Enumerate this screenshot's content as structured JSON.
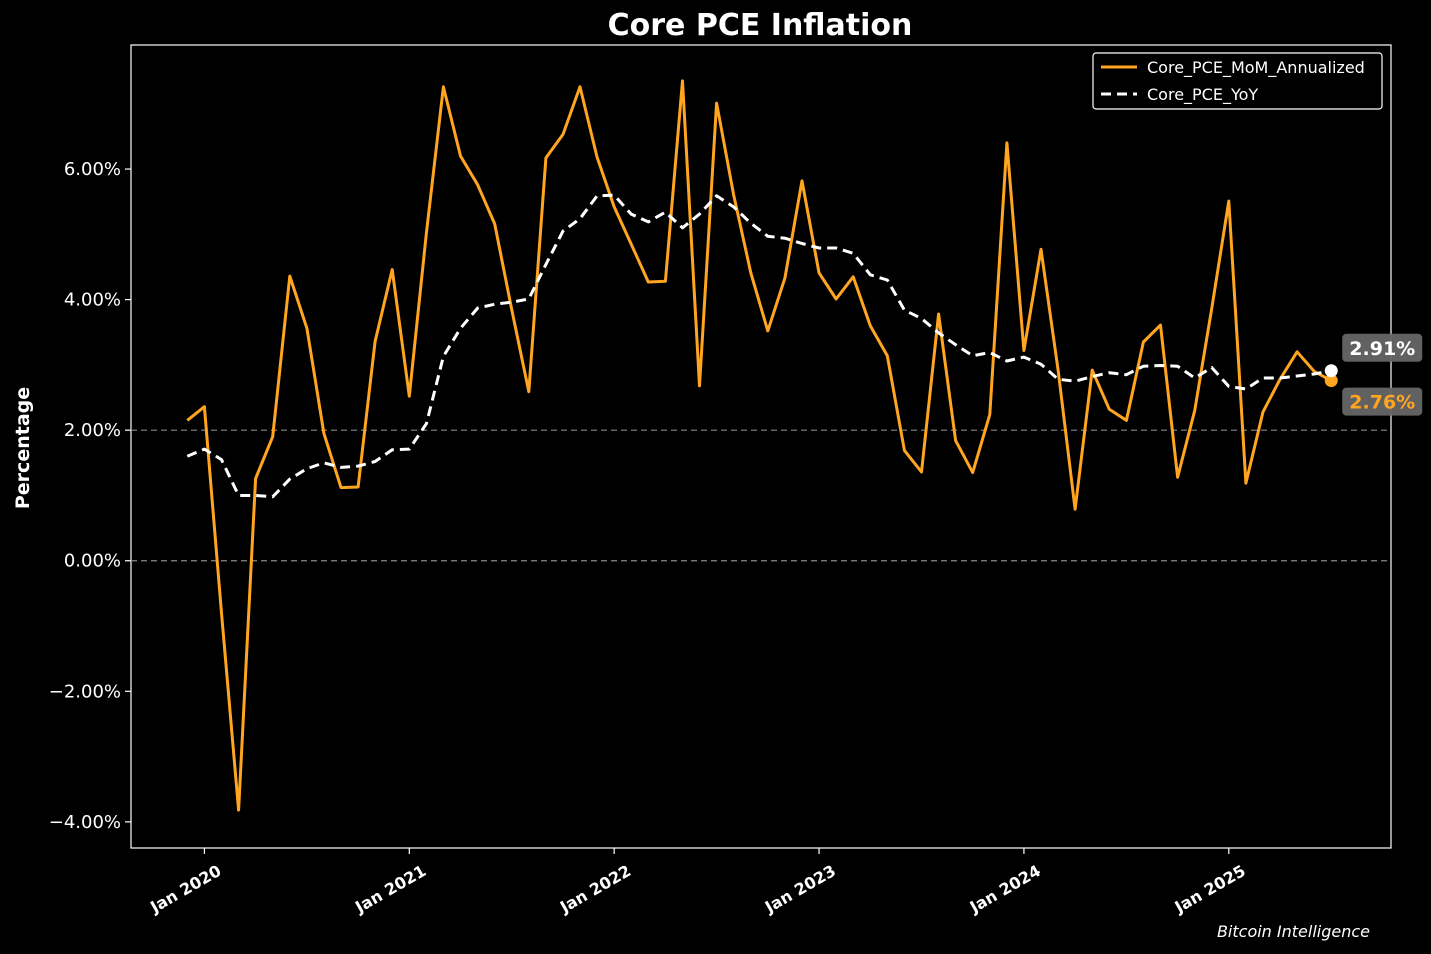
{
  "chart_data": {
    "type": "line",
    "title": "Core PCE Inflation",
    "xlabel": "",
    "ylabel": "Percentage",
    "ylim": [
      -4.4,
      7.9
    ],
    "yticks": [
      -4,
      -2,
      0,
      2,
      4,
      6
    ],
    "ytick_labels": [
      "−4.00%",
      "−2.00%",
      "0.00%",
      "2.00%",
      "4.00%",
      "6.00%"
    ],
    "xticks": [
      {
        "label": "Jan 2020",
        "month_index": 0
      },
      {
        "label": "Jan 2021",
        "month_index": 12
      },
      {
        "label": "Jan 2022",
        "month_index": 24
      },
      {
        "label": "Jan 2023",
        "month_index": 36
      },
      {
        "label": "Jan 2024",
        "month_index": 48
      },
      {
        "label": "Jan 2025",
        "month_index": 60
      }
    ],
    "x_start": "Dec 2019",
    "x_range_months": [
      -4.3,
      69.5
    ],
    "reference_lines": [
      0,
      2
    ],
    "legend_position": "top-right",
    "series": [
      {
        "name": "Core_PCE_MoM_Annualized",
        "color": "#FFA51F",
        "style": "solid",
        "values": [
          2.15,
          2.36,
          -0.8,
          -3.82,
          1.26,
          1.9,
          4.36,
          3.56,
          1.95,
          1.12,
          1.13,
          3.36,
          4.46,
          2.52,
          5.02,
          7.26,
          6.2,
          5.76,
          5.16,
          3.85,
          2.59,
          6.17,
          6.53,
          7.26,
          6.18,
          5.42,
          4.85,
          4.27,
          4.28,
          7.35,
          2.68,
          7.01,
          5.6,
          4.41,
          3.52,
          4.33,
          5.82,
          4.41,
          4.01,
          4.35,
          3.6,
          3.14,
          1.69,
          1.36,
          3.78,
          1.84,
          1.35,
          2.24,
          6.4,
          3.22,
          4.77,
          2.92,
          0.79,
          2.92,
          2.32,
          2.15,
          3.35,
          3.61,
          1.28,
          2.3,
          3.86,
          5.51,
          1.19,
          2.28,
          2.78,
          3.2,
          2.9,
          2.76
        ],
        "last_label": "2.76%"
      },
      {
        "name": "Core_PCE_YoY",
        "color": "#FFFFFF",
        "style": "dashed",
        "values": [
          1.6,
          1.71,
          1.55,
          1.0,
          1.0,
          0.98,
          1.25,
          1.41,
          1.5,
          1.43,
          1.45,
          1.52,
          1.7,
          1.71,
          2.1,
          3.13,
          3.56,
          3.87,
          3.93,
          3.96,
          4.01,
          4.54,
          5.05,
          5.24,
          5.59,
          5.6,
          5.31,
          5.19,
          5.34,
          5.1,
          5.31,
          5.59,
          5.42,
          5.17,
          4.97,
          4.94,
          4.86,
          4.79,
          4.79,
          4.71,
          4.38,
          4.3,
          3.84,
          3.71,
          3.49,
          3.31,
          3.14,
          3.19,
          3.06,
          3.12,
          3.01,
          2.78,
          2.75,
          2.82,
          2.88,
          2.85,
          2.98,
          2.99,
          2.98,
          2.8,
          2.96,
          2.67,
          2.63,
          2.8,
          2.8,
          2.83,
          2.86,
          2.91
        ],
        "last_label": "2.91%"
      }
    ],
    "end_label_bg": "#666666",
    "watermark": "Bitcoin Intelligence"
  }
}
